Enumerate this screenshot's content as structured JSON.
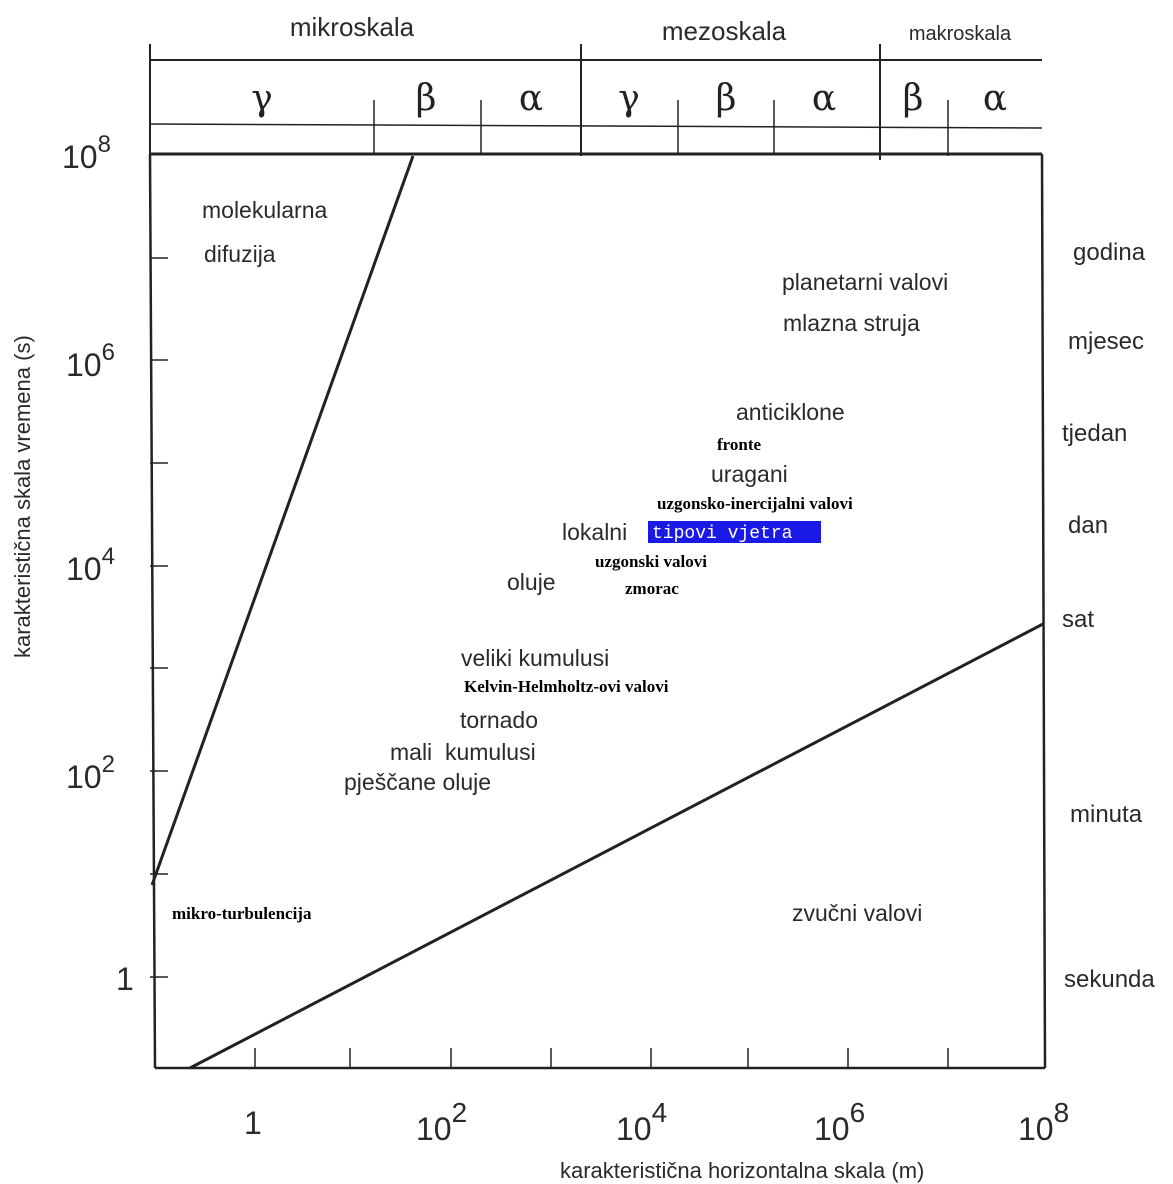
{
  "scales": {
    "micro": "mikroskala",
    "meso": "mezoskala",
    "macro": "makroskala",
    "subdivisions": [
      "γ",
      "β",
      "α",
      "γ",
      "β",
      "α",
      "β",
      "α"
    ]
  },
  "axes": {
    "y_label": "karakteristična skala vremena (s)",
    "x_label": "karakteristična  horizontalna skala (m)",
    "y_ticks": [
      {
        "base": "10",
        "exp": "8"
      },
      {
        "base": "10",
        "exp": "6"
      },
      {
        "base": "10",
        "exp": "4"
      },
      {
        "base": "10",
        "exp": "2"
      },
      {
        "base": "1",
        "exp": ""
      }
    ],
    "x_ticks": [
      {
        "base": "1",
        "exp": ""
      },
      {
        "base": "10",
        "exp": "2"
      },
      {
        "base": "10",
        "exp": "4"
      },
      {
        "base": "10",
        "exp": "6"
      },
      {
        "base": "10",
        "exp": "8"
      }
    ]
  },
  "time_units": [
    "godina",
    "mjesec",
    "tjedan",
    "dan",
    "sat",
    "minuta",
    "sekunda"
  ],
  "phenomena": {
    "molekularna": "molekularna",
    "difuzija": "difuzija",
    "planetarni_valovi": "planetarni valovi",
    "mlazna_struja": "mlazna struja",
    "anticiklone": "anticiklone",
    "fronte": "fronte",
    "uragani": "uragani",
    "uzgonsko_inercijalni": "uzgonsko-inercijalni valovi",
    "lokalni": "lokalni",
    "tipovi_vjetra": "tipovi vjetra",
    "uzgonski_valovi": "uzgonski valovi",
    "oluje": "oluje",
    "zmorac": "zmorac",
    "veliki_kumulusi": "veliki kumulusi",
    "kelvin_helmholtz": "Kelvin-Helmholtz-ovi valovi",
    "tornado": "tornado",
    "mali_kumulusi": "mali  kumulusi",
    "pjescane_oluje": "pješčane oluje",
    "mikro_turbulencija": "mikro-turbulencija",
    "zvucni_valovi": "zvučni valovi"
  },
  "colors": {
    "highlight": "#1a1ae6",
    "highlight_text": "#ffffff",
    "ink": "#222222"
  }
}
